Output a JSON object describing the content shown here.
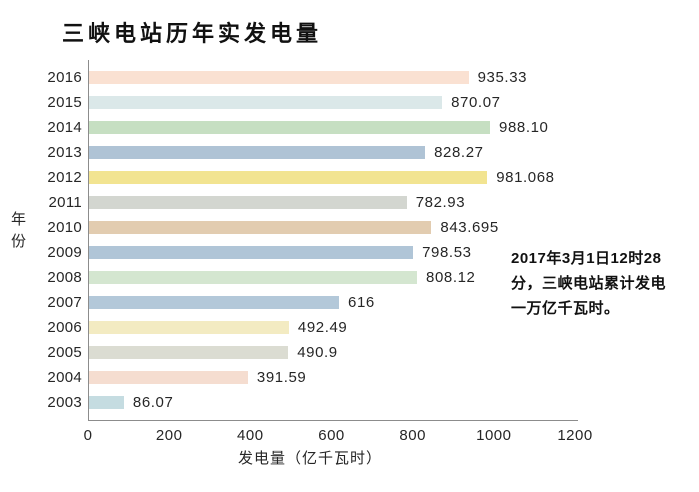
{
  "page": {
    "background": "#ffffff"
  },
  "chart_data": {
    "type": "bar",
    "orientation": "horizontal",
    "title": "三峡电站历年实发电量",
    "xlabel": "发电量（亿千瓦时）",
    "ylabel": "年份",
    "xlim": [
      0,
      1200
    ],
    "xticks": [
      0,
      200,
      400,
      600,
      800,
      1000,
      1200
    ],
    "grid": false,
    "legend_position": "none",
    "categories": [
      "2016",
      "2015",
      "2014",
      "2013",
      "2012",
      "2011",
      "2010",
      "2009",
      "2008",
      "2007",
      "2006",
      "2005",
      "2004",
      "2003"
    ],
    "values": [
      935.33,
      870.07,
      988.1,
      828.27,
      981.068,
      782.93,
      843.695,
      798.53,
      808.12,
      616,
      492.49,
      490.9,
      391.59,
      86.07
    ],
    "value_labels": [
      "935.33",
      "870.07",
      "988.10",
      "828.27",
      "981.068",
      "782.93",
      "843.695",
      "798.53",
      "808.12",
      "616",
      "492.49",
      "490.9",
      "391.59",
      "86.07"
    ],
    "bar_colors": [
      "#fae1d2",
      "#dbe8e9",
      "#c6dfc2",
      "#afc3d5",
      "#f2e491",
      "#d3d6d0",
      "#e2ccb0",
      "#b0c5d7",
      "#d4e6d0",
      "#b3c8d9",
      "#f3ebc2",
      "#dbdcd2",
      "#f5ddd0",
      "#c5dce1"
    ],
    "axis_color": "#8c8c8c",
    "text_color": "#262626",
    "annotation_lines": [
      "2017年3月1日12时28",
      "分，三峡电站累计发电",
      "一万亿千瓦时。"
    ],
    "annotation_text": "2017年3月1日12时28分，三峡电站累计发电一万亿千瓦时。"
  }
}
